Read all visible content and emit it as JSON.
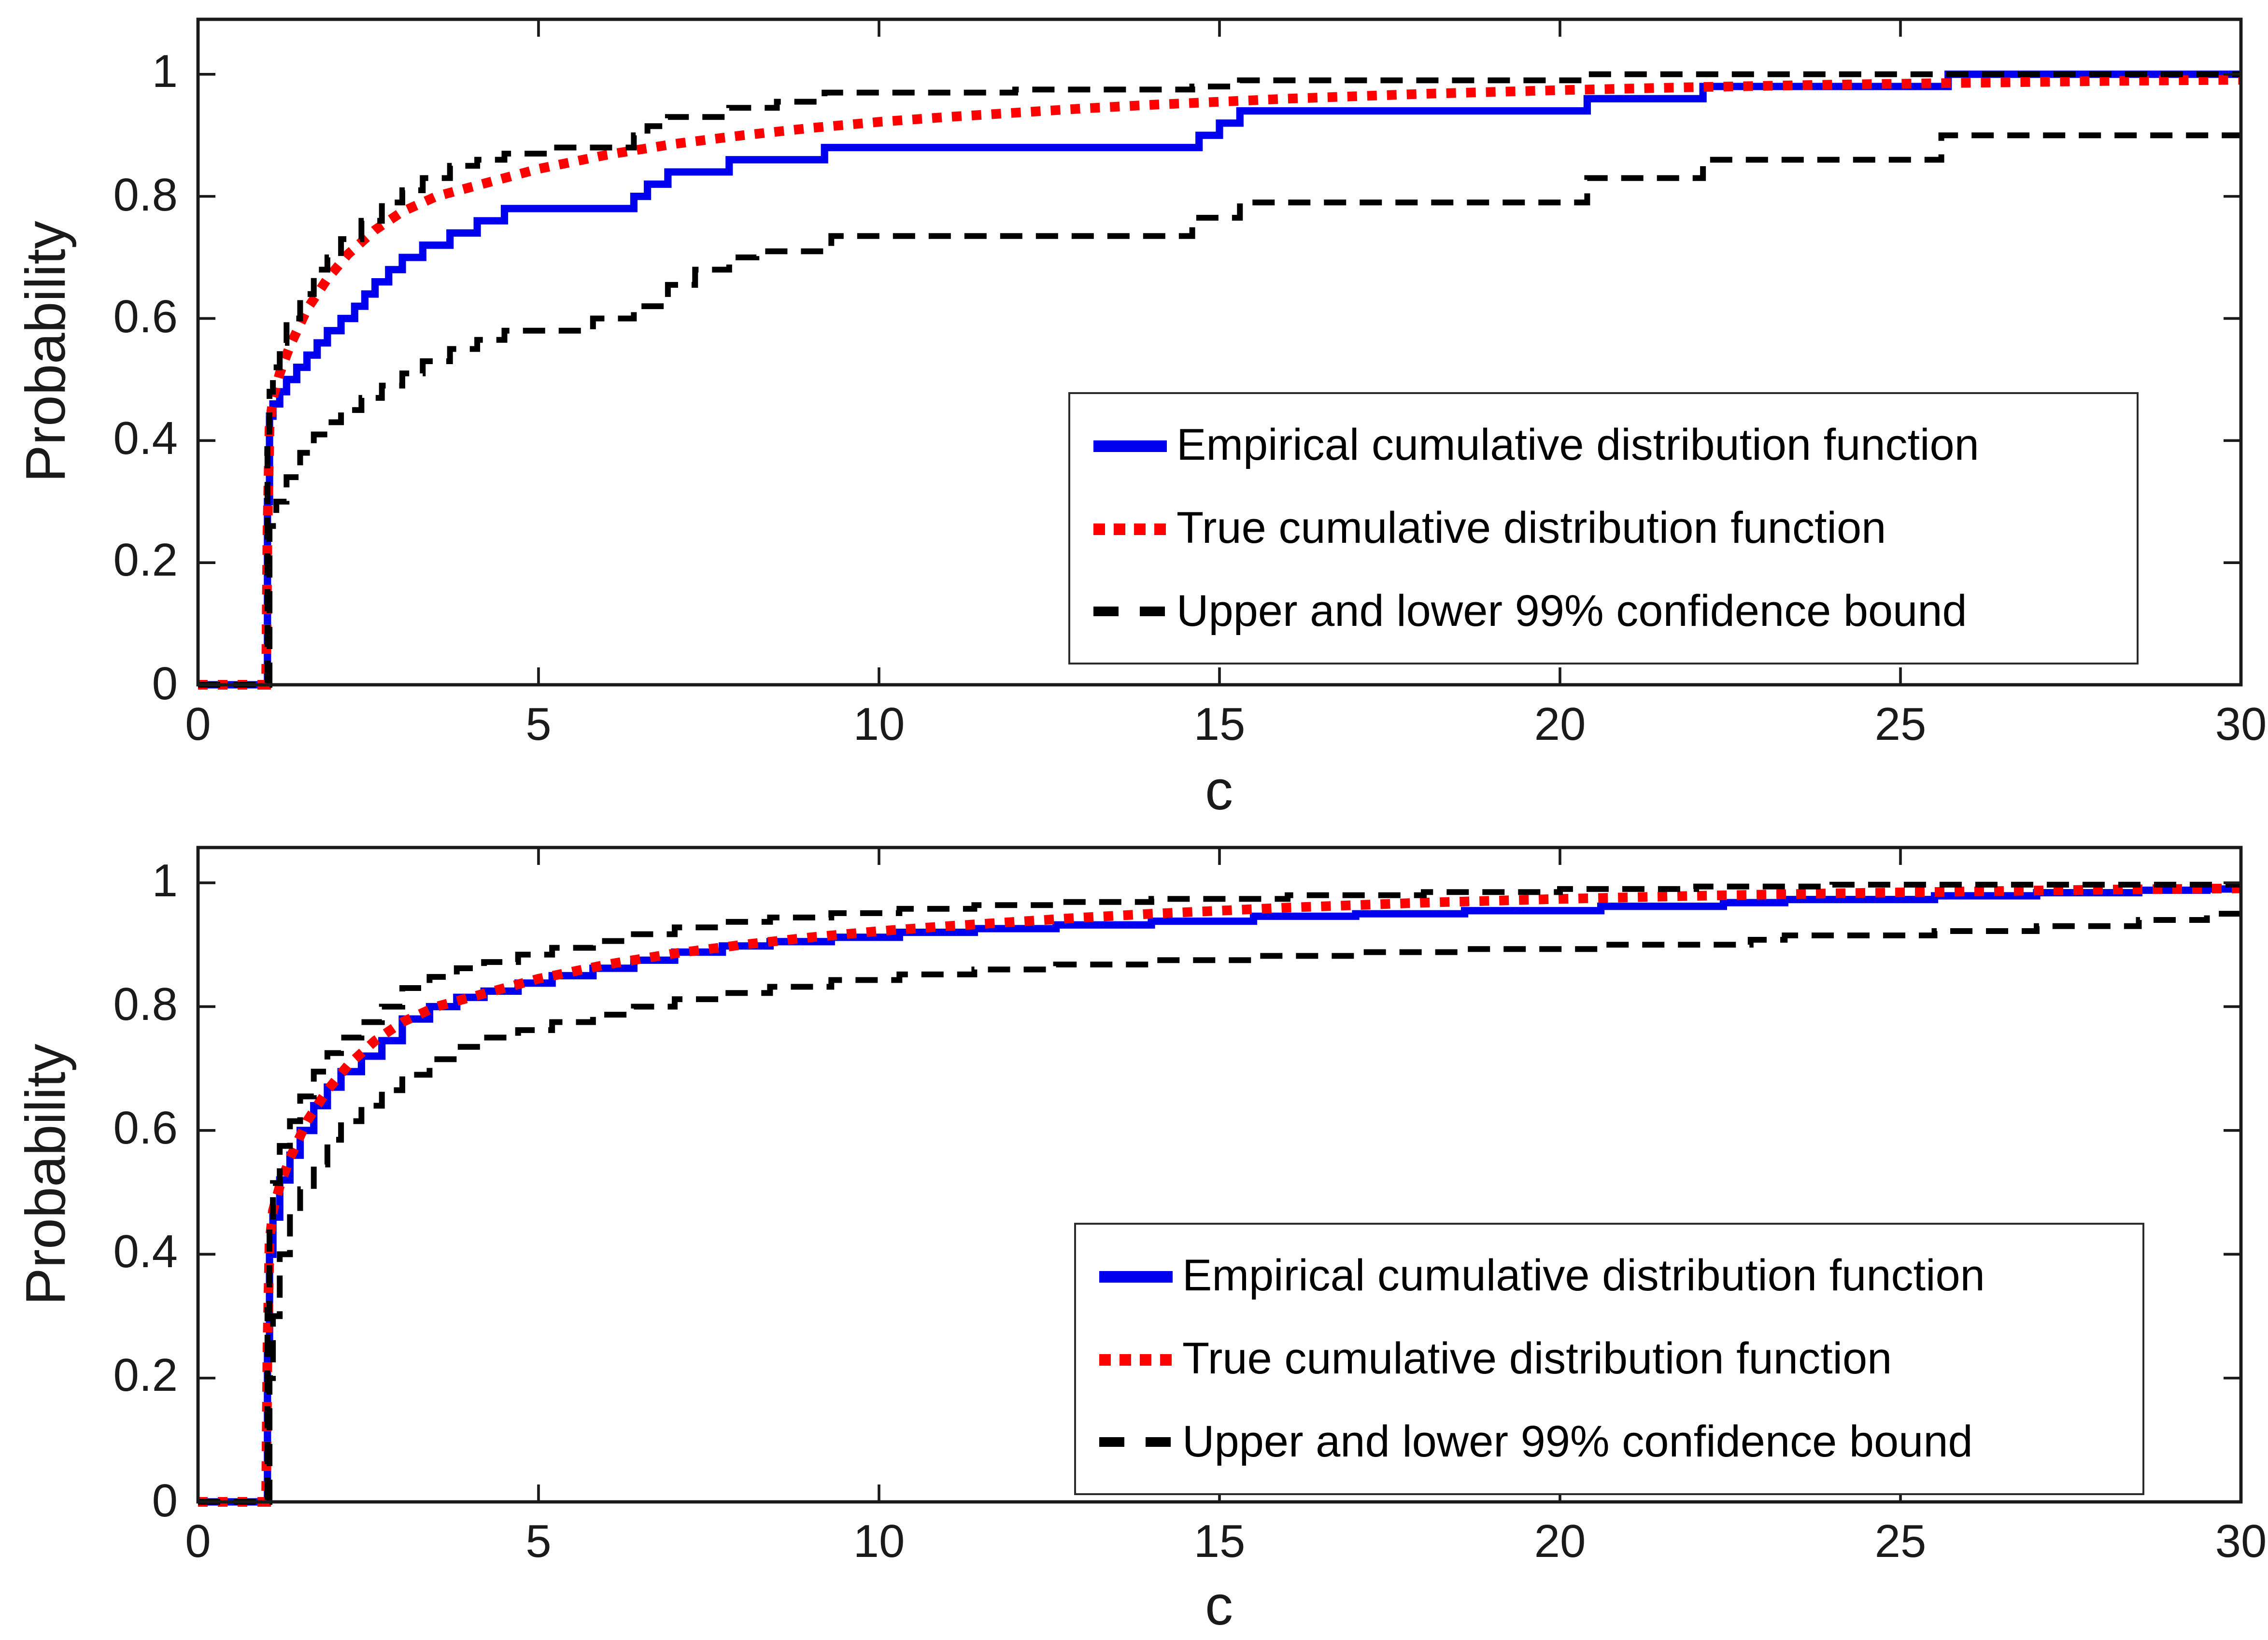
{
  "figure": {
    "background": "#ffffff",
    "axis_color": "#1a1a1a"
  },
  "chart_data": [
    {
      "id": "top-subplot",
      "type": "line",
      "title": "",
      "xlabel": "c",
      "ylabel": "Probability",
      "xlim": [
        0,
        30
      ],
      "ylim": [
        0,
        1.09
      ],
      "grid": false,
      "xticks": [
        0,
        5,
        10,
        15,
        20,
        25,
        30
      ],
      "yticks": [
        0,
        0.2,
        0.4,
        0.6,
        0.8,
        1
      ],
      "xticklabels": [
        "0",
        "5",
        "10",
        "15",
        "20",
        "25",
        "30"
      ],
      "yticklabels": [
        "0",
        "0.2",
        "0.4",
        "0.6",
        "0.8",
        "1"
      ],
      "legend": {
        "position": "bottom-right",
        "items": [
          {
            "label": "Empirical cumulative distribution function",
            "color": "#0000ee",
            "line_style": "solid"
          },
          {
            "label": "True cumulative distribution function",
            "color": "#ff0000",
            "line_style": "dotted"
          },
          {
            "label": "Upper and lower 99% confidence bound",
            "color": "#000000",
            "line_style": "dashed"
          }
        ]
      },
      "series": [
        {
          "name": "Empirical cumulative distribution function",
          "style": "step",
          "dash": "solid",
          "color": "#0000ee",
          "width": 3.8,
          "x": [
            1.02,
            1.05,
            1.1,
            1.2,
            1.3,
            1.45,
            1.6,
            1.75,
            1.9,
            2.1,
            2.3,
            2.45,
            2.6,
            2.8,
            3.0,
            3.3,
            3.7,
            4.1,
            4.5,
            6.4,
            6.6,
            6.9,
            7.8,
            9.2,
            14.7,
            15.0,
            15.3,
            20.4,
            22.1,
            25.7
          ],
          "y": [
            0.3,
            0.44,
            0.46,
            0.48,
            0.5,
            0.52,
            0.54,
            0.56,
            0.58,
            0.6,
            0.62,
            0.64,
            0.66,
            0.68,
            0.7,
            0.72,
            0.74,
            0.76,
            0.78,
            0.8,
            0.82,
            0.84,
            0.86,
            0.88,
            0.9,
            0.92,
            0.94,
            0.96,
            0.98,
            1.0
          ]
        },
        {
          "name": "True cumulative distribution function",
          "style": "line",
          "dash": "dotted",
          "color": "#ff0000",
          "width": 5,
          "x": [
            0,
            1,
            1.02,
            1.05,
            1.1,
            1.2,
            1.35,
            1.6,
            1.9,
            2.2,
            2.6,
            3.0,
            3.5,
            4.0,
            4.5,
            5,
            6,
            7,
            8,
            9,
            10,
            11,
            12,
            13,
            14,
            15,
            16,
            18,
            20,
            22,
            24,
            26,
            28,
            30
          ],
          "y": [
            0,
            0,
            0.25,
            0.42,
            0.47,
            0.51,
            0.555,
            0.615,
            0.665,
            0.705,
            0.745,
            0.775,
            0.8,
            0.815,
            0.83,
            0.845,
            0.868,
            0.886,
            0.9,
            0.912,
            0.922,
            0.93,
            0.937,
            0.944,
            0.95,
            0.955,
            0.96,
            0.968,
            0.974,
            0.979,
            0.983,
            0.986,
            0.989,
            0.991
          ]
        },
        {
          "name": "Upper 99% confidence bound",
          "style": "step",
          "dash": "dashed",
          "color": "#000000",
          "width": 3,
          "x": [
            1.02,
            1.05,
            1.1,
            1.2,
            1.3,
            1.5,
            1.7,
            1.9,
            2.1,
            2.4,
            2.7,
            3.0,
            3.3,
            3.7,
            4.1,
            4.5,
            5.2,
            6.4,
            6.6,
            6.9,
            7.8,
            8.5,
            9.2,
            12.0,
            14.6,
            15.3,
            20.4
          ],
          "y": [
            0.4,
            0.48,
            0.52,
            0.56,
            0.6,
            0.64,
            0.68,
            0.7,
            0.73,
            0.76,
            0.79,
            0.81,
            0.83,
            0.85,
            0.86,
            0.87,
            0.88,
            0.9,
            0.915,
            0.93,
            0.945,
            0.955,
            0.97,
            0.975,
            0.98,
            0.99,
            1.0
          ]
        },
        {
          "name": "Lower 99% confidence bound",
          "style": "step",
          "dash": "dashed",
          "color": "#000000",
          "width": 3,
          "x": [
            1.05,
            1.15,
            1.3,
            1.5,
            1.7,
            1.9,
            2.1,
            2.4,
            2.7,
            3.0,
            3.3,
            3.7,
            4.1,
            4.5,
            5.8,
            6.4,
            6.9,
            7.3,
            7.8,
            8.2,
            9.3,
            14.6,
            15.3,
            20.4,
            22.1,
            25.6
          ],
          "y": [
            0.26,
            0.3,
            0.34,
            0.38,
            0.41,
            0.43,
            0.45,
            0.47,
            0.49,
            0.51,
            0.53,
            0.55,
            0.565,
            0.58,
            0.6,
            0.62,
            0.655,
            0.68,
            0.7,
            0.71,
            0.735,
            0.765,
            0.79,
            0.83,
            0.86,
            0.9
          ]
        }
      ]
    },
    {
      "id": "bottom-subplot",
      "type": "line",
      "title": "",
      "xlabel": "c",
      "ylabel": "Probability",
      "xlim": [
        0,
        30
      ],
      "ylim": [
        0,
        1.057
      ],
      "grid": false,
      "xticks": [
        0,
        5,
        10,
        15,
        20,
        25,
        30
      ],
      "yticks": [
        0,
        0.2,
        0.4,
        0.6,
        0.8,
        1
      ],
      "xticklabels": [
        "0",
        "5",
        "10",
        "15",
        "20",
        "25",
        "30"
      ],
      "yticklabels": [
        "0",
        "0.2",
        "0.4",
        "0.6",
        "0.8",
        "1"
      ],
      "legend": {
        "position": "bottom-right",
        "items": [
          {
            "label": "Empirical cumulative distribution function",
            "color": "#0000ee",
            "line_style": "solid"
          },
          {
            "label": "True cumulative distribution function",
            "color": "#ff0000",
            "line_style": "dotted"
          },
          {
            "label": "Upper and lower 99% confidence bound",
            "color": "#000000",
            "line_style": "dashed"
          }
        ]
      },
      "series": [
        {
          "name": "Empirical cumulative distribution function",
          "style": "step",
          "dash": "solid",
          "color": "#0000ee",
          "width": 3.8,
          "x": [
            1.02,
            1.05,
            1.1,
            1.2,
            1.35,
            1.5,
            1.7,
            1.9,
            2.1,
            2.4,
            2.7,
            3.0,
            3.4,
            3.8,
            4.2,
            4.7,
            5.2,
            5.8,
            6.4,
            7.0,
            7.7,
            8.4,
            9.3,
            10.3,
            11.4,
            12.6,
            14.0,
            15.5,
            17.0,
            18.6,
            20.6,
            22.4,
            23.3,
            25.5,
            27.0,
            28.5,
            29.5
          ],
          "y": [
            0.25,
            0.4,
            0.46,
            0.52,
            0.56,
            0.6,
            0.64,
            0.67,
            0.695,
            0.72,
            0.745,
            0.78,
            0.8,
            0.815,
            0.825,
            0.838,
            0.85,
            0.862,
            0.875,
            0.888,
            0.898,
            0.905,
            0.912,
            0.92,
            0.926,
            0.932,
            0.938,
            0.946,
            0.95,
            0.955,
            0.962,
            0.968,
            0.973,
            0.979,
            0.984,
            0.988,
            0.99
          ]
        },
        {
          "name": "True cumulative distribution function",
          "style": "line",
          "dash": "dotted",
          "color": "#ff0000",
          "width": 5,
          "x": [
            0,
            1,
            1.02,
            1.05,
            1.1,
            1.2,
            1.35,
            1.6,
            1.9,
            2.2,
            2.6,
            3.0,
            3.5,
            4.0,
            4.5,
            5,
            6,
            7,
            8,
            9,
            10,
            11,
            12,
            13,
            14,
            15,
            16,
            18,
            20,
            22,
            24,
            26,
            28,
            30
          ],
          "y": [
            0,
            0,
            0.25,
            0.42,
            0.47,
            0.51,
            0.555,
            0.615,
            0.665,
            0.705,
            0.745,
            0.775,
            0.8,
            0.815,
            0.83,
            0.845,
            0.868,
            0.886,
            0.9,
            0.912,
            0.922,
            0.93,
            0.937,
            0.944,
            0.95,
            0.955,
            0.96,
            0.968,
            0.974,
            0.979,
            0.983,
            0.986,
            0.989,
            0.991
          ]
        },
        {
          "name": "Upper 99% confidence bound",
          "style": "step",
          "dash": "dashed",
          "color": "#000000",
          "width": 3,
          "x": [
            1.02,
            1.05,
            1.1,
            1.2,
            1.35,
            1.5,
            1.7,
            1.9,
            2.1,
            2.4,
            2.7,
            3.0,
            3.4,
            3.8,
            4.2,
            4.7,
            5.2,
            5.8,
            6.4,
            7.0,
            7.7,
            8.4,
            9.3,
            10.3,
            11.4,
            12.6,
            14.0,
            16.0,
            18.0,
            20.0,
            22.0,
            24.0
          ],
          "y": [
            0.31,
            0.455,
            0.515,
            0.575,
            0.615,
            0.655,
            0.695,
            0.725,
            0.75,
            0.775,
            0.8,
            0.83,
            0.848,
            0.862,
            0.872,
            0.884,
            0.895,
            0.906,
            0.917,
            0.928,
            0.937,
            0.944,
            0.951,
            0.958,
            0.964,
            0.969,
            0.974,
            0.98,
            0.985,
            0.99,
            0.994,
            0.997
          ]
        },
        {
          "name": "Lower 99% confidence bound",
          "style": "step",
          "dash": "dashed",
          "color": "#000000",
          "width": 3,
          "x": [
            1.05,
            1.1,
            1.2,
            1.35,
            1.5,
            1.7,
            1.9,
            2.1,
            2.4,
            2.7,
            3.0,
            3.4,
            3.8,
            4.2,
            4.7,
            5.2,
            5.8,
            6.4,
            7.0,
            7.7,
            8.4,
            9.3,
            10.3,
            11.4,
            12.6,
            14.0,
            15.5,
            17.0,
            18.6,
            20.6,
            22.8,
            23.3,
            25.5,
            27.0,
            28.5,
            29.5
          ],
          "y": [
            0.2,
            0.3,
            0.4,
            0.465,
            0.505,
            0.545,
            0.585,
            0.615,
            0.64,
            0.665,
            0.69,
            0.715,
            0.735,
            0.75,
            0.762,
            0.775,
            0.787,
            0.8,
            0.812,
            0.822,
            0.832,
            0.843,
            0.852,
            0.86,
            0.868,
            0.875,
            0.882,
            0.888,
            0.893,
            0.9,
            0.908,
            0.915,
            0.922,
            0.93,
            0.94,
            0.95
          ]
        }
      ]
    }
  ]
}
